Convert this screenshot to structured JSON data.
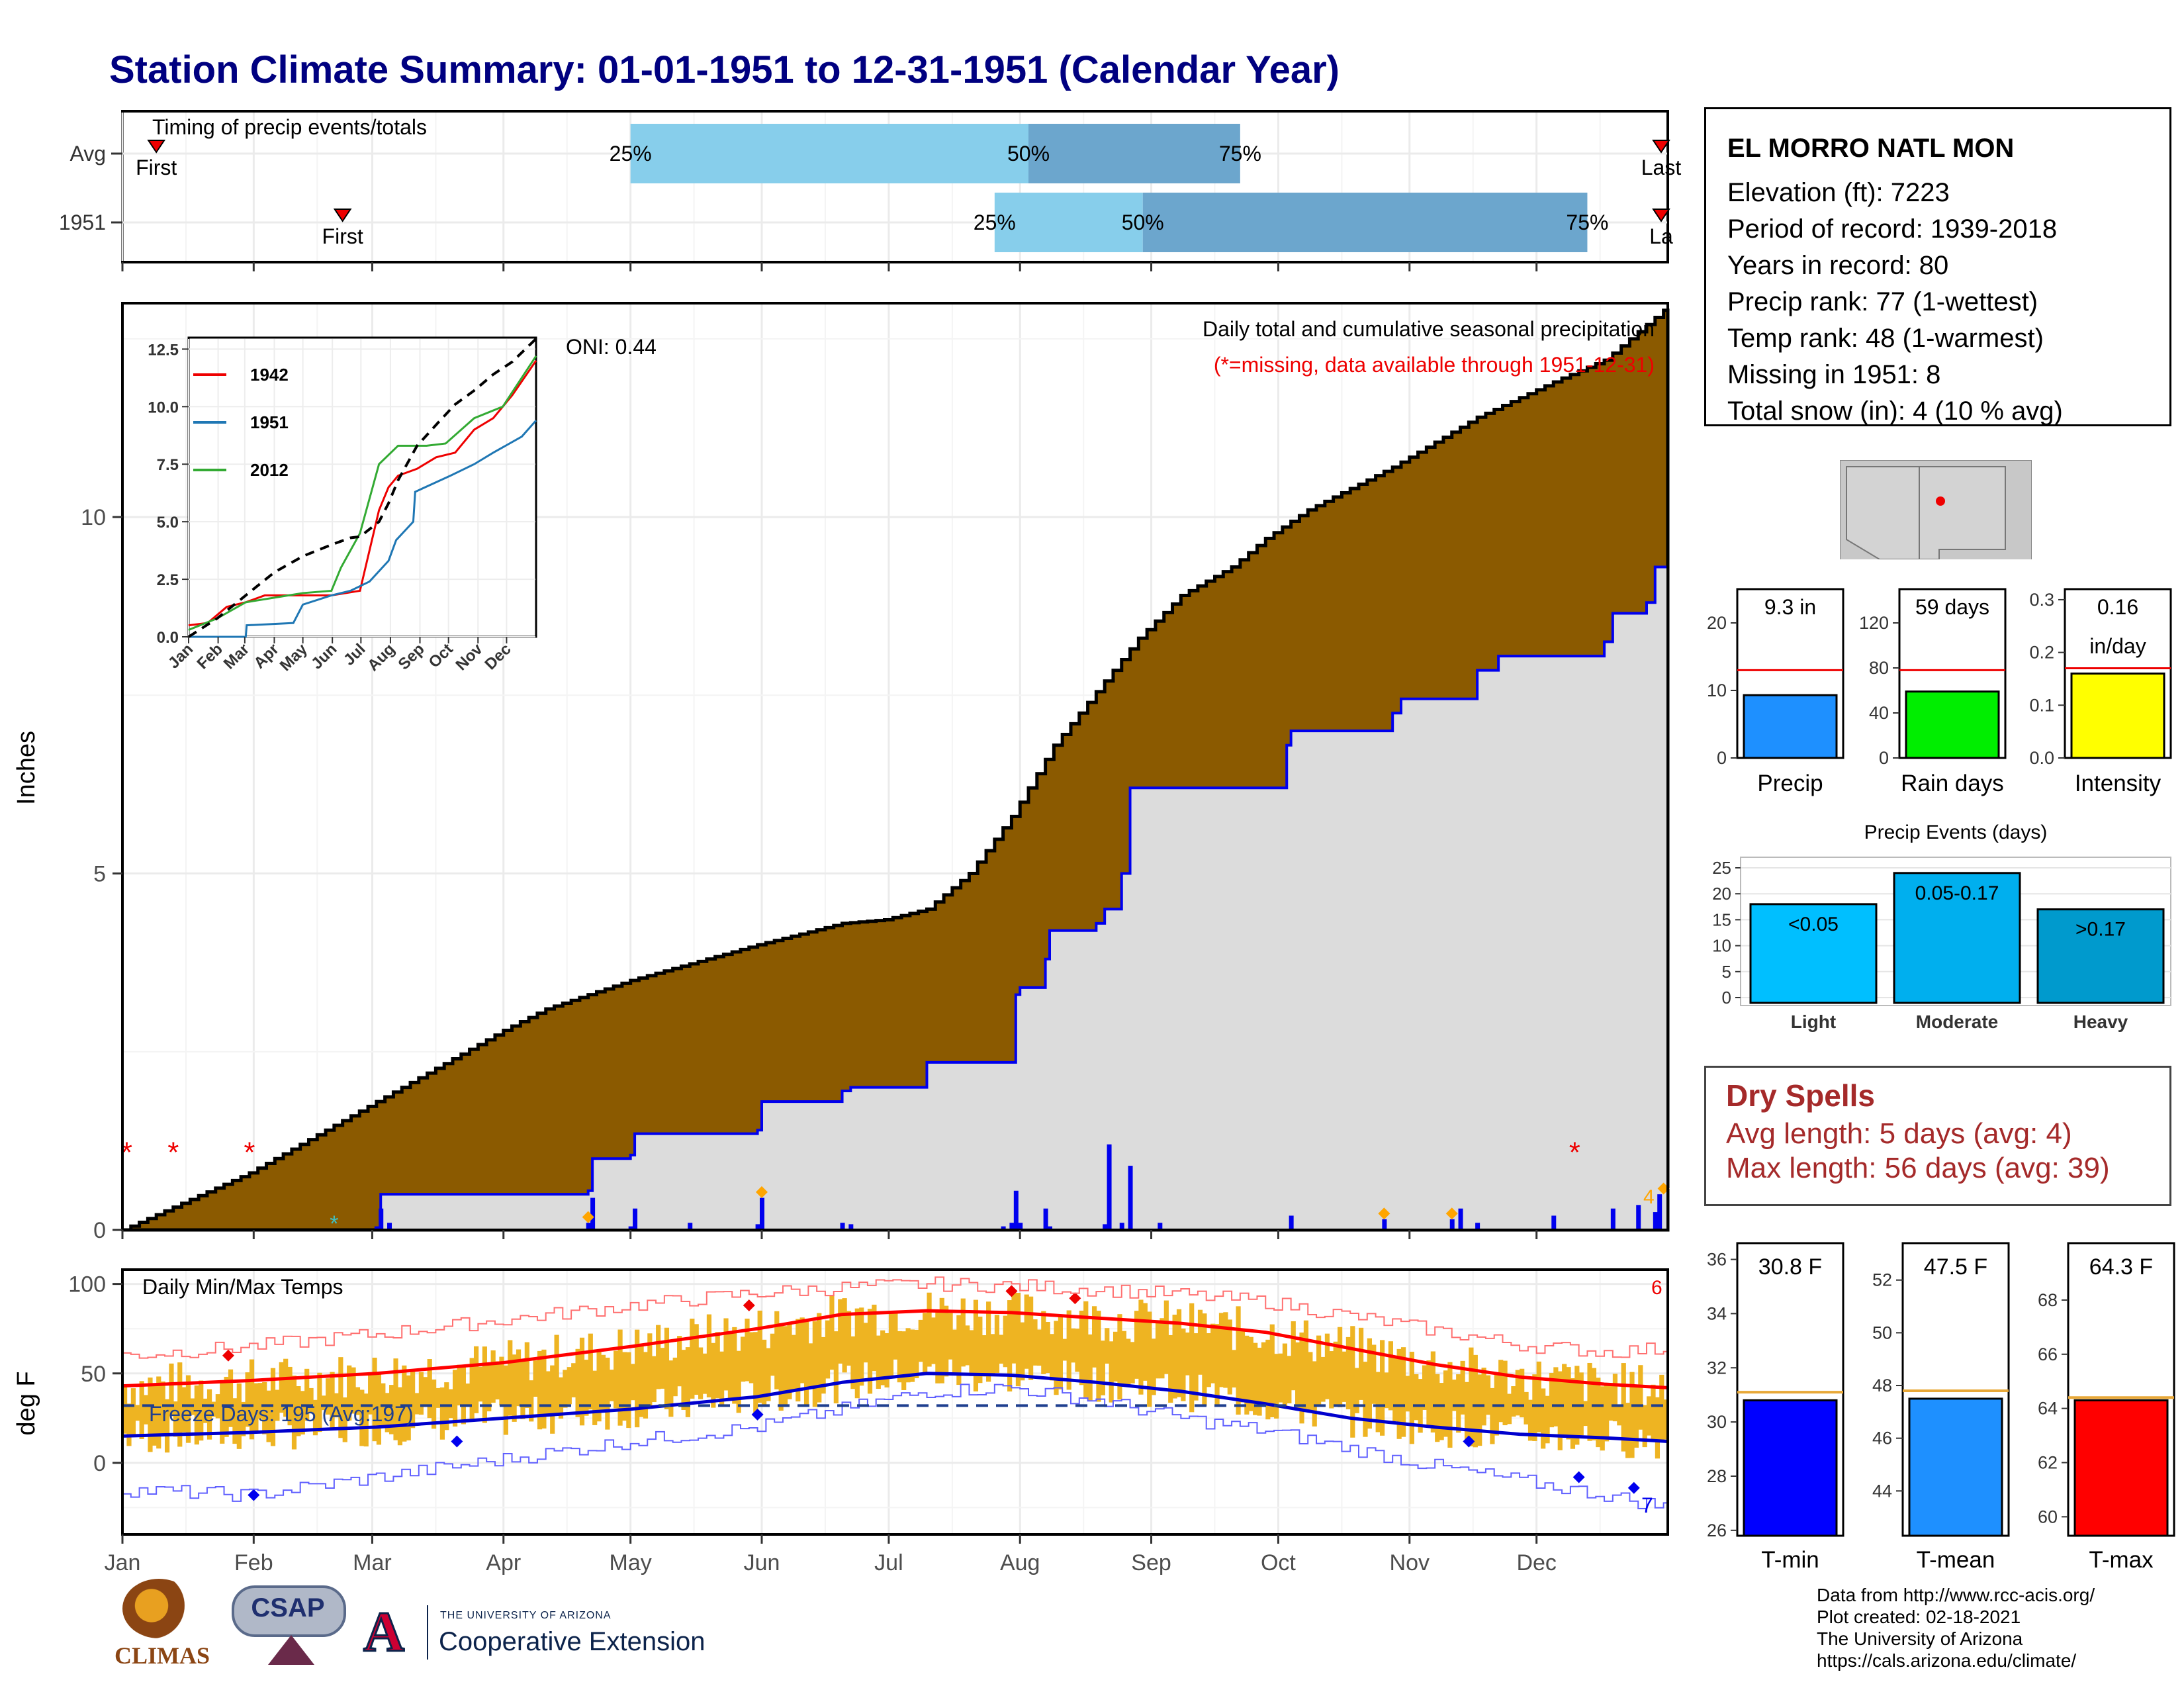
{
  "title": "Station Climate Summary: 01-01-1951 to 12-31-1951 (Calendar Year)",
  "colors": {
    "title": "#000080",
    "cumulative_avg": "#8B5A00",
    "cumulative_1951_fill": "#DCDCDC",
    "cumulative_1951_line": "#0000EE",
    "daily_precip": "#0000EE",
    "timing_light": "#87CEEB",
    "timing_dark": "#6CA6CD",
    "temp_bars": "#EEB422",
    "tmax_line": "#FF0000",
    "tmin_line": "#0000CD",
    "freeze_line": "#1F3F8F",
    "dry_spells": "#A52A2A"
  },
  "timing": {
    "label": "Timing of precip events/totals",
    "rows": [
      {
        "name": "Avg",
        "first_label": "First",
        "last_label": "Last",
        "q": [
          {
            "label": "25%",
            "day": 120
          },
          {
            "label": "50%",
            "day": 214
          },
          {
            "label": "75%",
            "day": 264
          }
        ],
        "first_day": 8,
        "last_day": 370
      },
      {
        "name": "1951",
        "first_label": "First",
        "last_label": "La",
        "q": [
          {
            "label": "25%",
            "day": 206
          },
          {
            "label": "50%",
            "day": 241
          },
          {
            "label": "75%",
            "day": 346
          }
        ],
        "first_day": 52,
        "last_day": 380
      }
    ]
  },
  "precip_panel": {
    "title": "Daily total and cumulative seasonal precipitation",
    "note": "(*=missing, data available through 1951-12-31)",
    "oni": "ONI: 0.44",
    "ylabel": "Inches",
    "count_label": "4"
  },
  "chart_data": [
    {
      "name": "cumulative_precip",
      "type": "area",
      "title": "Daily total and cumulative seasonal precipitation",
      "ylabel": "Inches",
      "xlim": [
        0,
        365
      ],
      "ylim": [
        0,
        13.0
      ],
      "yticks": [
        0,
        5,
        10
      ],
      "xticks": [
        "Jan",
        "Feb",
        "Mar",
        "Apr",
        "May",
        "Jun",
        "Jul",
        "Aug",
        "Sep",
        "Oct",
        "Nov",
        "Dec"
      ],
      "avg_cumulative": {
        "day": [
          0,
          30,
          60,
          90,
          100,
          120,
          150,
          170,
          180,
          190,
          200,
          210,
          220,
          240,
          250,
          262,
          270,
          280,
          300,
          320,
          340,
          350,
          365
        ],
        "value": [
          0,
          0.8,
          1.8,
          2.8,
          3.1,
          3.5,
          4.0,
          4.3,
          4.35,
          4.5,
          5.0,
          5.8,
          6.8,
          8.3,
          8.9,
          9.3,
          9.7,
          10.1,
          10.7,
          11.4,
          11.95,
          12.2,
          12.95
        ]
      },
      "cumulative_1951": {
        "day": [
          0,
          60,
          61,
          110,
          111,
          120,
          121,
          150,
          151,
          170,
          172,
          190,
          210,
          211,
          212,
          218,
          219,
          230,
          232,
          236,
          238,
          275,
          276,
          300,
          302,
          320,
          325,
          350,
          352,
          360,
          362,
          365
        ],
        "value": [
          0,
          0,
          0.5,
          0.55,
          1.0,
          1.05,
          1.35,
          1.4,
          1.8,
          1.95,
          2.0,
          2.35,
          2.35,
          3.3,
          3.4,
          3.8,
          4.2,
          4.3,
          4.5,
          5.0,
          6.2,
          6.8,
          7.0,
          7.25,
          7.45,
          7.85,
          8.05,
          8.25,
          8.65,
          8.8,
          9.3,
          9.45
        ]
      },
      "daily": {
        "day": [
          60,
          61,
          63,
          110,
          111,
          120,
          121,
          134,
          150,
          151,
          170,
          172,
          208,
          210,
          211,
          212,
          218,
          219,
          232,
          233,
          236,
          238,
          245,
          276,
          298,
          314,
          316,
          320,
          338,
          352,
          358,
          362,
          363
        ],
        "value": [
          0.05,
          0.3,
          0.1,
          0.1,
          0.45,
          0.05,
          0.3,
          0.1,
          0.08,
          0.45,
          0.1,
          0.08,
          0.05,
          0.1,
          0.55,
          0.1,
          0.3,
          0.05,
          0.08,
          1.2,
          0.1,
          0.9,
          0.1,
          0.2,
          0.15,
          0.15,
          0.3,
          0.1,
          0.2,
          0.3,
          0.35,
          0.25,
          0.5
        ]
      },
      "missing_days": [
        1,
        12,
        30,
        343
      ]
    },
    {
      "name": "inset_cumulative",
      "type": "line",
      "ylim": [
        0,
        13
      ],
      "yticks": [
        "0.0",
        "2.5",
        "5.0",
        "7.5",
        "10.0",
        "12.5"
      ],
      "xticks": [
        "Jan",
        "Feb",
        "Mar",
        "Apr",
        "May",
        "Jun",
        "Jul",
        "Aug",
        "Sep",
        "Oct",
        "Nov",
        "Dec"
      ],
      "series": [
        {
          "name": "1942",
          "color": "#EE0000",
          "day": [
            0,
            20,
            40,
            60,
            80,
            100,
            130,
            150,
            180,
            200,
            210,
            220,
            240,
            260,
            280,
            300,
            320,
            340,
            365
          ],
          "value": [
            0.5,
            0.6,
            1.3,
            1.5,
            1.8,
            1.8,
            1.8,
            1.8,
            2.0,
            5.5,
            6.5,
            7.0,
            7.3,
            7.8,
            8.0,
            9.0,
            9.5,
            10.5,
            12.0
          ]
        },
        {
          "name": "1951",
          "color": "#1F77B4",
          "day": [
            0,
            40,
            60,
            61,
            110,
            120,
            150,
            170,
            190,
            210,
            218,
            236,
            238,
            275,
            300,
            320,
            350,
            365
          ],
          "value": [
            0,
            0,
            0,
            0.5,
            0.6,
            1.4,
            1.8,
            2.0,
            2.4,
            3.3,
            4.2,
            5.0,
            6.3,
            7.0,
            7.5,
            8.0,
            8.7,
            9.4
          ]
        },
        {
          "name": "2012",
          "color": "#33AA33",
          "day": [
            0,
            30,
            60,
            90,
            120,
            150,
            160,
            180,
            190,
            200,
            220,
            250,
            270,
            300,
            330,
            365
          ],
          "value": [
            0.3,
            0.8,
            1.5,
            1.7,
            1.9,
            2.0,
            3.0,
            4.5,
            6.0,
            7.5,
            8.3,
            8.3,
            8.4,
            9.5,
            10.0,
            12.2
          ]
        },
        {
          "name": "avg",
          "color": "#000000",
          "dashed": true,
          "day": [
            0,
            30,
            60,
            90,
            120,
            150,
            170,
            180,
            200,
            210,
            220,
            240,
            262,
            280,
            300,
            320,
            340,
            365
          ],
          "value": [
            0,
            0.8,
            1.8,
            2.8,
            3.5,
            4.0,
            4.3,
            4.35,
            5.0,
            5.8,
            6.8,
            8.3,
            9.3,
            10.1,
            10.7,
            11.4,
            11.95,
            12.95
          ]
        }
      ]
    },
    {
      "name": "temperatures",
      "type": "line",
      "title": "Daily Min/Max Temps",
      "ylabel": "deg F",
      "ylim": [
        -40,
        108
      ],
      "yticks": [
        0,
        50,
        100
      ],
      "xticks": [
        "Jan",
        "Feb",
        "Mar",
        "Apr",
        "May",
        "Jun",
        "Jul",
        "Aug",
        "Sep",
        "Oct",
        "Nov",
        "Dec"
      ],
      "freeze_label": "Freeze Days: 195 (Avg:197)",
      "freeze_level": 32,
      "avg_tmax": {
        "day": [
          0,
          30,
          60,
          90,
          120,
          150,
          170,
          190,
          210,
          230,
          250,
          270,
          290,
          310,
          330,
          350,
          365
        ],
        "value": [
          43,
          46,
          50,
          56,
          65,
          75,
          83,
          85,
          84,
          81,
          78,
          73,
          64,
          55,
          48,
          44,
          42
        ]
      },
      "avg_tmin": {
        "day": [
          0,
          30,
          60,
          90,
          120,
          150,
          170,
          190,
          210,
          230,
          250,
          270,
          290,
          310,
          330,
          350,
          365
        ],
        "value": [
          15,
          17,
          20,
          25,
          30,
          37,
          45,
          50,
          49,
          45,
          40,
          33,
          25,
          20,
          16,
          14,
          12
        ]
      },
      "record_max": {
        "day": [
          0,
          30,
          60,
          90,
          120,
          150,
          170,
          190,
          210,
          230,
          250,
          270,
          290,
          310,
          330,
          350,
          365
        ],
        "value": [
          60,
          65,
          72,
          80,
          88,
          95,
          98,
          100,
          99,
          97,
          94,
          90,
          82,
          74,
          66,
          62,
          64
        ]
      },
      "record_min": {
        "day": [
          0,
          30,
          60,
          90,
          120,
          150,
          170,
          190,
          210,
          230,
          250,
          270,
          290,
          310,
          330,
          350,
          365
        ],
        "value": [
          -15,
          -18,
          -8,
          2,
          12,
          20,
          30,
          40,
          42,
          35,
          25,
          18,
          8,
          -2,
          -10,
          -18,
          -25
        ]
      },
      "high_count": "6",
      "low_count": "7"
    }
  ],
  "station": {
    "name": "EL MORRO NATL MON",
    "lines": [
      "Elevation (ft): 7223",
      "Period of record: 1939-2018",
      "Years in record: 80",
      "Precip rank: 77 (1-wettest)",
      "Temp rank: 48 (1-warmest)",
      "Missing in 1951: 8",
      "Total snow (in): 4 (10 % avg)"
    ]
  },
  "mini_bars": [
    {
      "label": "Precip",
      "value_label": "9.3 in",
      "value": 9.3,
      "avg": 13,
      "ylim": [
        0,
        25
      ],
      "ticks": [
        "0",
        "10",
        "20"
      ],
      "tick_values": [
        0,
        10,
        20
      ],
      "color": "#1E90FF"
    },
    {
      "label": "Rain days",
      "value_label": "59 days",
      "value": 59,
      "avg": 78,
      "ylim": [
        0,
        150
      ],
      "ticks": [
        "0",
        "40",
        "80",
        "120"
      ],
      "tick_values": [
        0,
        40,
        80,
        120
      ],
      "color": "#00EE00"
    },
    {
      "label": "Intensity",
      "value_label": "0.16",
      "value_label2": "in/day",
      "value": 0.16,
      "avg": 0.17,
      "ylim": [
        0,
        0.32
      ],
      "ticks": [
        "0.0",
        "0.1",
        "0.2",
        "0.3"
      ],
      "tick_values": [
        0,
        0.1,
        0.2,
        0.3
      ],
      "color": "#FFFF00"
    }
  ],
  "events": {
    "title": "Precip Events (days)",
    "categories": [
      "Light",
      "Moderate",
      "Heavy"
    ],
    "values": [
      18,
      24,
      17
    ],
    "labels": [
      "<0.05",
      "0.05-0.17",
      ">0.17"
    ],
    "yticks": [
      "0",
      "5",
      "10",
      "15",
      "20",
      "25"
    ],
    "colors": [
      "#00BFFF",
      "#00AFEE",
      "#009ACD"
    ]
  },
  "dry_spells": {
    "title": "Dry Spells",
    "avg_line": "Avg length: 5 days (avg: 4)",
    "max_line": "Max length: 56 days (avg: 39)"
  },
  "temp_bars": [
    {
      "label": "T-min",
      "value_label": "30.8 F",
      "value": 30.8,
      "avg": 31.1,
      "ylim": [
        25.8,
        36.6
      ],
      "ticks": [
        "26",
        "28",
        "30",
        "32",
        "34",
        "36"
      ],
      "tick_values": [
        26,
        28,
        30,
        32,
        34,
        36
      ],
      "color": "#0000FF"
    },
    {
      "label": "T-mean",
      "value_label": "47.5 F",
      "value": 47.5,
      "avg": 47.8,
      "ylim": [
        42.3,
        53.4
      ],
      "ticks": [
        "44",
        "46",
        "48",
        "50",
        "52"
      ],
      "tick_values": [
        44,
        46,
        48,
        50,
        52
      ],
      "color": "#1E90FF"
    },
    {
      "label": "T-max",
      "value_label": "64.3 F",
      "value": 64.3,
      "avg": 64.4,
      "ylim": [
        59.3,
        70.1
      ],
      "ticks": [
        "60",
        "62",
        "64",
        "66",
        "68"
      ],
      "tick_values": [
        60,
        62,
        64,
        66,
        68
      ],
      "color": "#FF0000"
    }
  ],
  "footer": {
    "lines": [
      "Data from http://www.rcc-acis.org/",
      "Plot created: 02-18-2021",
      "The University of Arizona",
      "https://cals.arizona.edu/climate/"
    ],
    "logo_climas": "CLIMAS",
    "logo_csap": "CSAP",
    "logo_ua_small": "THE UNIVERSITY OF ARIZONA",
    "logo_ua_big": "Cooperative Extension",
    "logo_ua_letter": "A"
  }
}
